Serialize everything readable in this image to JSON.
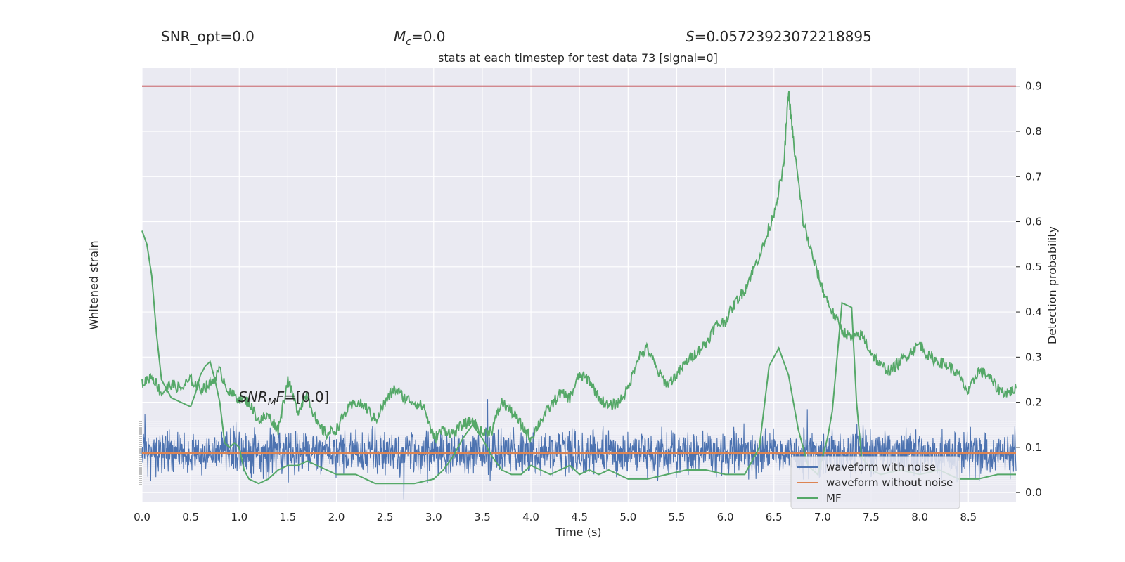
{
  "stats": {
    "snr_opt": "SNR_opt=0.0",
    "mc": "=0.0",
    "mc_symbol": "M",
    "mc_sub": "c",
    "s": "=0.05723923072218895",
    "s_symbol": "S",
    "snr_mf": "=[0.0]",
    "snr_mf_symbol": "SNR",
    "snr_mf_sub": "M",
    "snr_mf_tail": "F"
  },
  "chart_data": {
    "type": "line",
    "title": "stats at each timestep for test data 73 [signal=0]",
    "xlabel": "Time (s)",
    "ylabel_left": "Whitened strain",
    "ylabel_right": "Detection probability",
    "xlim": [
      0.0,
      8.99
    ],
    "ylim_right": [
      -0.02,
      0.94
    ],
    "grid": true,
    "legend_position": "lower-right",
    "x_ticks": [
      "0.0",
      "0.5",
      "1.0",
      "1.5",
      "2.0",
      "2.5",
      "3.0",
      "3.5",
      "4.0",
      "4.5",
      "5.0",
      "5.5",
      "6.0",
      "6.5",
      "7.0",
      "7.5",
      "8.0",
      "8.5"
    ],
    "y_ticks_right": [
      "0.0",
      "0.1",
      "0.2",
      "0.3",
      "0.4",
      "0.5",
      "0.6",
      "0.7",
      "0.8",
      "0.9"
    ],
    "threshold": {
      "value": 0.9,
      "color": "#c44e52"
    },
    "colors": {
      "noise": "#4c72b0",
      "clean": "#dd8452",
      "mf": "#55a868",
      "detection": "#55a868"
    },
    "legend": [
      "waveform with noise",
      "waveform without noise",
      "MF"
    ],
    "series": [
      {
        "name": "waveform with noise",
        "description_values": "dense noise, amplitude approx ±1 around 0 (strain axis)",
        "amplitude": 1.0
      },
      {
        "name": "waveform without noise",
        "x": [
          0.0,
          8.99
        ],
        "values": [
          0.0,
          0.0
        ]
      },
      {
        "name": "MF",
        "x": [
          0.0,
          0.05,
          0.1,
          0.15,
          0.2,
          0.3,
          0.4,
          0.5,
          0.55,
          0.6,
          0.65,
          0.7,
          0.75,
          0.8,
          0.85,
          0.9,
          0.95,
          1.0,
          1.05,
          1.1,
          1.2,
          1.3,
          1.4,
          1.5,
          1.6,
          1.7,
          1.8,
          1.9,
          2.0,
          2.2,
          2.4,
          2.6,
          2.8,
          3.0,
          3.1,
          3.2,
          3.3,
          3.4,
          3.5,
          3.6,
          3.7,
          3.8,
          3.9,
          4.0,
          4.1,
          4.2,
          4.3,
          4.4,
          4.5,
          4.6,
          4.7,
          4.8,
          4.9,
          5.0,
          5.2,
          5.4,
          5.6,
          5.8,
          6.0,
          6.2,
          6.35,
          6.45,
          6.55,
          6.65,
          6.75,
          6.85,
          6.95,
          7.05,
          7.1,
          7.2,
          7.3,
          7.35,
          7.4,
          7.5,
          7.6,
          7.8,
          8.0,
          8.2,
          8.4,
          8.6,
          8.8,
          8.99
        ],
        "values": [
          0.58,
          0.55,
          0.48,
          0.35,
          0.25,
          0.21,
          0.2,
          0.19,
          0.22,
          0.26,
          0.28,
          0.29,
          0.25,
          0.2,
          0.11,
          0.1,
          0.11,
          0.1,
          0.05,
          0.03,
          0.02,
          0.03,
          0.05,
          0.06,
          0.06,
          0.07,
          0.06,
          0.05,
          0.04,
          0.04,
          0.02,
          0.02,
          0.02,
          0.03,
          0.05,
          0.08,
          0.12,
          0.15,
          0.12,
          0.08,
          0.05,
          0.04,
          0.04,
          0.06,
          0.05,
          0.04,
          0.05,
          0.06,
          0.04,
          0.05,
          0.04,
          0.05,
          0.04,
          0.03,
          0.03,
          0.04,
          0.05,
          0.05,
          0.04,
          0.04,
          0.1,
          0.28,
          0.32,
          0.26,
          0.14,
          0.06,
          0.04,
          0.12,
          0.18,
          0.42,
          0.41,
          0.2,
          0.08,
          0.05,
          0.04,
          0.05,
          0.04,
          0.05,
          0.03,
          0.03,
          0.04,
          0.04
        ]
      },
      {
        "name": "Detection probability",
        "x": [
          0.0,
          0.1,
          0.2,
          0.3,
          0.4,
          0.5,
          0.6,
          0.7,
          0.8,
          0.9,
          1.0,
          1.1,
          1.2,
          1.3,
          1.4,
          1.5,
          1.6,
          1.7,
          1.8,
          1.9,
          2.0,
          2.1,
          2.2,
          2.3,
          2.4,
          2.5,
          2.6,
          2.7,
          2.8,
          2.9,
          3.0,
          3.1,
          3.2,
          3.3,
          3.4,
          3.5,
          3.6,
          3.7,
          3.8,
          3.9,
          4.0,
          4.1,
          4.2,
          4.3,
          4.4,
          4.5,
          4.6,
          4.7,
          4.8,
          4.9,
          5.0,
          5.1,
          5.2,
          5.3,
          5.4,
          5.5,
          5.6,
          5.7,
          5.8,
          5.9,
          6.0,
          6.1,
          6.2,
          6.3,
          6.4,
          6.5,
          6.6,
          6.65,
          6.7,
          6.8,
          6.9,
          7.0,
          7.1,
          7.2,
          7.3,
          7.4,
          7.5,
          7.6,
          7.7,
          7.8,
          7.9,
          8.0,
          8.1,
          8.2,
          8.3,
          8.4,
          8.5,
          8.6,
          8.7,
          8.8,
          8.9,
          8.99
        ],
        "values": [
          0.24,
          0.26,
          0.22,
          0.24,
          0.23,
          0.25,
          0.23,
          0.24,
          0.27,
          0.22,
          0.21,
          0.2,
          0.16,
          0.17,
          0.14,
          0.25,
          0.18,
          0.22,
          0.15,
          0.13,
          0.14,
          0.18,
          0.2,
          0.19,
          0.16,
          0.2,
          0.23,
          0.21,
          0.2,
          0.19,
          0.12,
          0.14,
          0.13,
          0.15,
          0.16,
          0.13,
          0.14,
          0.2,
          0.18,
          0.15,
          0.12,
          0.16,
          0.19,
          0.22,
          0.21,
          0.26,
          0.25,
          0.21,
          0.19,
          0.2,
          0.23,
          0.3,
          0.32,
          0.27,
          0.24,
          0.26,
          0.29,
          0.31,
          0.33,
          0.37,
          0.38,
          0.42,
          0.45,
          0.5,
          0.55,
          0.62,
          0.72,
          0.89,
          0.78,
          0.6,
          0.52,
          0.45,
          0.4,
          0.36,
          0.34,
          0.35,
          0.31,
          0.28,
          0.27,
          0.29,
          0.31,
          0.33,
          0.3,
          0.29,
          0.28,
          0.26,
          0.22,
          0.27,
          0.26,
          0.23,
          0.22,
          0.23
        ]
      }
    ]
  }
}
